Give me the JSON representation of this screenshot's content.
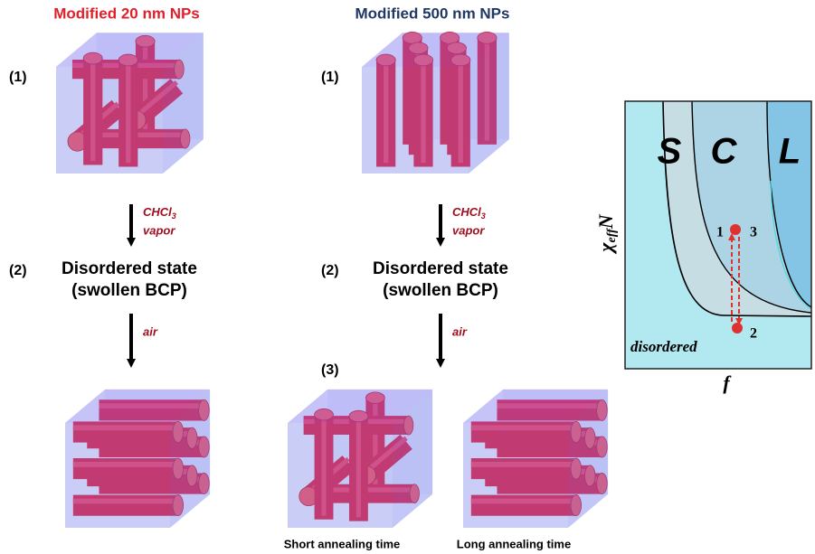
{
  "columns": [
    {
      "title": "Modified 20 nm NPs",
      "step1": "(1)",
      "step2": "(2)",
      "vapor": {
        "formula": "CHCl",
        "subscript": "3",
        "word": "vapor"
      },
      "state": [
        "Disordered state",
        "(swollen BCP)"
      ],
      "air": "air"
    },
    {
      "title": "Modified 500 nm NPs",
      "step1": "(1)",
      "step2": "(2)",
      "step3": "(3)",
      "vapor": {
        "formula": "CHCl",
        "subscript": "3",
        "word": "vapor"
      },
      "state": [
        "Disordered state",
        "(swollen BCP)"
      ],
      "air": "air",
      "captions": [
        "Short annealing time",
        "Long annealing time"
      ]
    }
  ],
  "phase_diagram": {
    "phases": [
      "S",
      "C",
      "L"
    ],
    "points": [
      "1",
      "2",
      "3"
    ],
    "disordered": "disordered",
    "x_label": "f",
    "y_label": {
      "symbol": "χ",
      "subscript": "eff",
      "suffix": "N"
    }
  }
}
